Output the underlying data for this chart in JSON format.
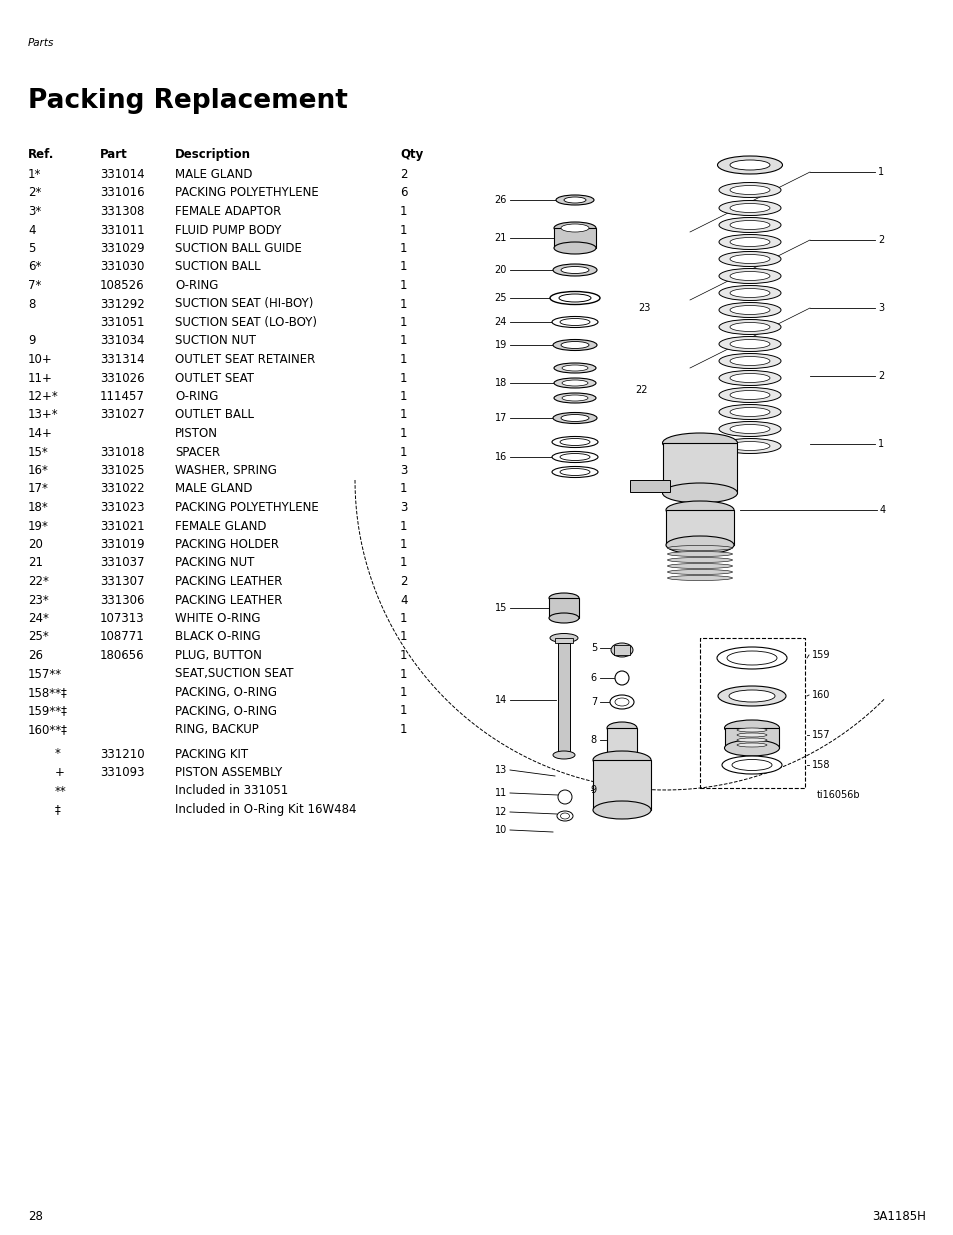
{
  "page_label": "Parts",
  "title": "Packing Replacement",
  "page_number": "28",
  "doc_number": "3A1185H",
  "diagram_label": "ti16056b",
  "col_headers": [
    "Ref.",
    "Part",
    "Description",
    "Qty"
  ],
  "rows": [
    {
      "ref": "1*",
      "part": "331014",
      "desc": "MALE GLAND",
      "qty": "2"
    },
    {
      "ref": "2*",
      "part": "331016",
      "desc": "PACKING POLYETHYLENE",
      "qty": "6"
    },
    {
      "ref": "3*",
      "part": "331308",
      "desc": "FEMALE ADAPTOR",
      "qty": "1"
    },
    {
      "ref": "4",
      "part": "331011",
      "desc": "FLUID PUMP BODY",
      "qty": "1"
    },
    {
      "ref": "5",
      "part": "331029",
      "desc": "SUCTION BALL GUIDE",
      "qty": "1"
    },
    {
      "ref": "6*",
      "part": "331030",
      "desc": "SUCTION BALL",
      "qty": "1"
    },
    {
      "ref": "7*",
      "part": "108526",
      "desc": "O-RING",
      "qty": "1"
    },
    {
      "ref": "8",
      "part": "331292",
      "desc": "SUCTION SEAT (HI-BOY)",
      "qty": "1"
    },
    {
      "ref": "",
      "part": "331051",
      "desc": "SUCTION SEAT (LO-BOY)",
      "qty": "1"
    },
    {
      "ref": "9",
      "part": "331034",
      "desc": "SUCTION NUT",
      "qty": "1"
    },
    {
      "ref": "10+",
      "part": "331314",
      "desc": "OUTLET SEAT RETAINER",
      "qty": "1"
    },
    {
      "ref": "11+",
      "part": "331026",
      "desc": "OUTLET SEAT",
      "qty": "1"
    },
    {
      "ref": "12+*",
      "part": "111457",
      "desc": "O-RING",
      "qty": "1"
    },
    {
      "ref": "13+*",
      "part": "331027",
      "desc": "OUTLET BALL",
      "qty": "1"
    },
    {
      "ref": "14+",
      "part": "",
      "desc": "PISTON",
      "qty": "1"
    },
    {
      "ref": "15*",
      "part": "331018",
      "desc": "SPACER",
      "qty": "1"
    },
    {
      "ref": "16*",
      "part": "331025",
      "desc": "WASHER, SPRING",
      "qty": "3"
    },
    {
      "ref": "17*",
      "part": "331022",
      "desc": "MALE GLAND",
      "qty": "1"
    },
    {
      "ref": "18*",
      "part": "331023",
      "desc": "PACKING POLYETHYLENE",
      "qty": "3"
    },
    {
      "ref": "19*",
      "part": "331021",
      "desc": "FEMALE GLAND",
      "qty": "1"
    },
    {
      "ref": "20",
      "part": "331019",
      "desc": "PACKING HOLDER",
      "qty": "1"
    },
    {
      "ref": "21",
      "part": "331037",
      "desc": "PACKING NUT",
      "qty": "1"
    },
    {
      "ref": "22*",
      "part": "331307",
      "desc": "PACKING LEATHER",
      "qty": "2"
    },
    {
      "ref": "23*",
      "part": "331306",
      "desc": "PACKING LEATHER",
      "qty": "4"
    },
    {
      "ref": "24*",
      "part": "107313",
      "desc": "WHITE O-RING",
      "qty": "1"
    },
    {
      "ref": "25*",
      "part": "108771",
      "desc": "BLACK O-RING",
      "qty": "1"
    },
    {
      "ref": "26",
      "part": "180656",
      "desc": "PLUG, BUTTON",
      "qty": "1"
    },
    {
      "ref": "157**",
      "part": "",
      "desc": "SEAT,SUCTION SEAT",
      "qty": "1"
    },
    {
      "ref": "158**‡",
      "part": "",
      "desc": "PACKING, O-RING",
      "qty": "1"
    },
    {
      "ref": "159**‡",
      "part": "",
      "desc": "PACKING, O-RING",
      "qty": "1"
    },
    {
      "ref": "160**‡",
      "part": "",
      "desc": "RING, BACKUP",
      "qty": "1"
    }
  ],
  "footnotes": [
    {
      "sym": "*",
      "part": "331210",
      "desc": "PACKING KIT"
    },
    {
      "sym": "+",
      "part": "331093",
      "desc": "PISTON ASSEMBLY"
    },
    {
      "sym": "**",
      "part": "",
      "desc": "Included in 331051"
    },
    {
      "sym": "‡",
      "part": "",
      "desc": "Included in O-Ring Kit 16W484"
    }
  ]
}
